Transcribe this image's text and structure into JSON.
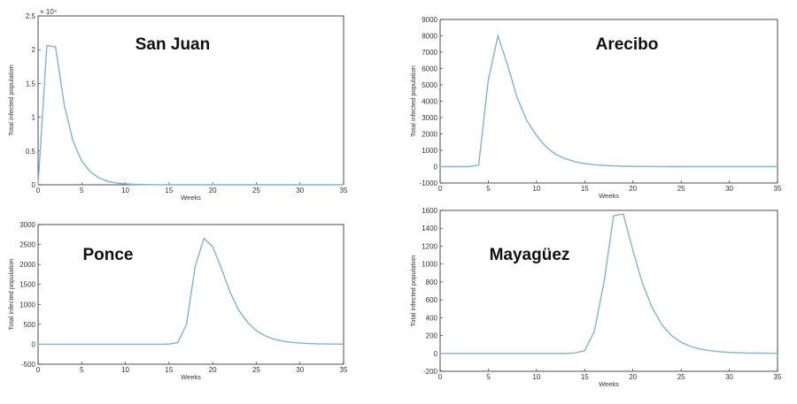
{
  "chart_data": [
    {
      "type": "line",
      "title": "San Juan",
      "xlabel": "Weeks",
      "ylabel": "Total infected population",
      "xlim": [
        0,
        35
      ],
      "ylim": [
        0,
        25000
      ],
      "xticks": [
        0,
        5,
        10,
        15,
        20,
        25,
        30,
        35
      ],
      "yticks": [
        0,
        0.5,
        1,
        1.5,
        2,
        2.5
      ],
      "ytick_scale": 10000,
      "exponent_label": "× 10⁴",
      "x": [
        0,
        1,
        2,
        3,
        4,
        5,
        6,
        7,
        8,
        9,
        10,
        11,
        12,
        13,
        14,
        15,
        16,
        17,
        18,
        19,
        20,
        21,
        22,
        23,
        24,
        25,
        26,
        27,
        28,
        29,
        30,
        31,
        32,
        33,
        34,
        35
      ],
      "y": [
        0,
        20600,
        20400,
        11800,
        6500,
        3500,
        1900,
        1000,
        500,
        250,
        130,
        70,
        35,
        20,
        10,
        5,
        3,
        2,
        1,
        1,
        0,
        0,
        0,
        0,
        0,
        0,
        0,
        0,
        0,
        0,
        0,
        0,
        0,
        0,
        0,
        0
      ]
    },
    {
      "type": "line",
      "title": "Arecibo",
      "xlabel": "Weeks",
      "ylabel": "Total infected population",
      "xlim": [
        0,
        35
      ],
      "ylim": [
        -1000,
        9000
      ],
      "xticks": [
        0,
        5,
        10,
        15,
        20,
        25,
        30,
        35
      ],
      "yticks": [
        -1000,
        0,
        1000,
        2000,
        3000,
        4000,
        5000,
        6000,
        7000,
        8000,
        9000
      ],
      "x": [
        0,
        1,
        2,
        3,
        4,
        5,
        6,
        7,
        8,
        9,
        10,
        11,
        12,
        13,
        14,
        15,
        16,
        17,
        18,
        19,
        20,
        21,
        22,
        23,
        24,
        25,
        26,
        27,
        28,
        29,
        30,
        31,
        32,
        33,
        34,
        35
      ],
      "y": [
        0,
        0,
        0,
        0,
        100,
        5300,
        8000,
        6200,
        4200,
        2800,
        1900,
        1200,
        750,
        480,
        300,
        190,
        120,
        75,
        45,
        28,
        17,
        10,
        6,
        4,
        2,
        1,
        1,
        0,
        0,
        0,
        0,
        0,
        0,
        0,
        0,
        0
      ]
    },
    {
      "type": "line",
      "title": "Ponce",
      "xlabel": "Weeks",
      "ylabel": "Total infected population",
      "xlim": [
        0,
        35
      ],
      "ylim": [
        -500,
        3000
      ],
      "xticks": [
        0,
        5,
        10,
        15,
        20,
        25,
        30,
        35
      ],
      "yticks": [
        -500,
        0,
        500,
        1000,
        1500,
        2000,
        2500,
        3000
      ],
      "x": [
        0,
        1,
        2,
        3,
        4,
        5,
        6,
        7,
        8,
        9,
        10,
        11,
        12,
        13,
        14,
        15,
        16,
        17,
        18,
        19,
        20,
        21,
        22,
        23,
        24,
        25,
        26,
        27,
        28,
        29,
        30,
        31,
        32,
        33,
        34,
        35
      ],
      "y": [
        0,
        0,
        0,
        0,
        0,
        0,
        0,
        0,
        0,
        0,
        0,
        0,
        0,
        0,
        0,
        5,
        40,
        500,
        1950,
        2650,
        2450,
        1900,
        1300,
        850,
        550,
        340,
        210,
        130,
        80,
        50,
        30,
        18,
        11,
        7,
        4,
        2
      ]
    },
    {
      "type": "line",
      "title": "Mayagüez",
      "xlabel": "Weeks",
      "ylabel": "Total infected population",
      "xlim": [
        0,
        35
      ],
      "ylim": [
        -200,
        1600
      ],
      "xticks": [
        0,
        5,
        10,
        15,
        20,
        25,
        30,
        35
      ],
      "yticks": [
        -200,
        0,
        200,
        400,
        600,
        800,
        1000,
        1200,
        1400,
        1600
      ],
      "x": [
        0,
        1,
        2,
        3,
        4,
        5,
        6,
        7,
        8,
        9,
        10,
        11,
        12,
        13,
        14,
        15,
        16,
        17,
        18,
        19,
        20,
        21,
        22,
        23,
        24,
        25,
        26,
        27,
        28,
        29,
        30,
        31,
        32,
        33,
        34,
        35
      ],
      "y": [
        0,
        0,
        0,
        0,
        0,
        0,
        0,
        0,
        0,
        0,
        0,
        0,
        0,
        0,
        5,
        30,
        250,
        800,
        1540,
        1560,
        1150,
        780,
        510,
        320,
        200,
        125,
        78,
        48,
        30,
        19,
        12,
        7,
        4,
        3,
        2,
        1
      ]
    }
  ],
  "colors": {
    "series": "#7fb3d5",
    "axis": "#222222",
    "text": "#333333"
  }
}
